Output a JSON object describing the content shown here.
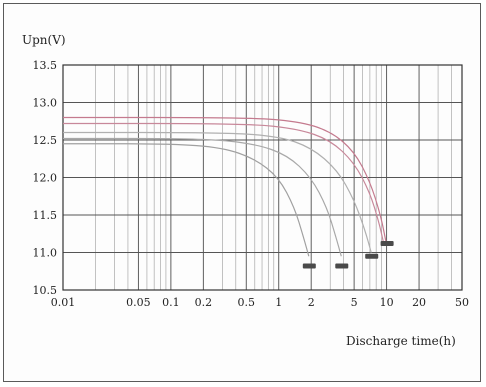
{
  "chart_data": {
    "type": "line",
    "ylabel": "Upn(V)",
    "xlabel": "Discharge time(h)",
    "x_scale": "log",
    "xlim": [
      0.01,
      50
    ],
    "ylim": [
      10.5,
      13.5
    ],
    "grid": true,
    "y_ticks": [
      "10.5",
      "11.0",
      "11.5",
      "12.0",
      "12.5",
      "13.0",
      "13.5"
    ],
    "x_ticks": [
      "0.01",
      "0.05",
      "0.1",
      "0.2",
      "0.5",
      "1",
      "2",
      "5",
      "10",
      "20",
      "50"
    ],
    "series": [
      {
        "color": "#a0a0a0",
        "points": [
          [
            0.01,
            12.45
          ],
          [
            0.1,
            12.45
          ],
          [
            0.3,
            12.4
          ],
          [
            0.6,
            12.25
          ],
          [
            1.0,
            12.0
          ],
          [
            1.4,
            11.6
          ],
          [
            1.7,
            11.2
          ],
          [
            1.9,
            10.95
          ]
        ]
      },
      {
        "color": "#a8a8a8",
        "points": [
          [
            0.01,
            12.52
          ],
          [
            0.2,
            12.52
          ],
          [
            0.6,
            12.45
          ],
          [
            1.2,
            12.3
          ],
          [
            2.0,
            12.0
          ],
          [
            2.8,
            11.6
          ],
          [
            3.4,
            11.2
          ],
          [
            3.8,
            10.95
          ]
        ]
      },
      {
        "color": "#b0b0b0",
        "points": [
          [
            0.01,
            12.6
          ],
          [
            0.3,
            12.6
          ],
          [
            1.0,
            12.55
          ],
          [
            2.0,
            12.4
          ],
          [
            3.5,
            12.1
          ],
          [
            5.0,
            11.7
          ],
          [
            6.3,
            11.3
          ],
          [
            7.2,
            11.0
          ]
        ]
      },
      {
        "color": "#c8889a",
        "points": [
          [
            0.01,
            12.72
          ],
          [
            0.5,
            12.72
          ],
          [
            1.5,
            12.65
          ],
          [
            3.0,
            12.5
          ],
          [
            5.0,
            12.2
          ],
          [
            7.0,
            11.8
          ],
          [
            8.5,
            11.4
          ],
          [
            9.3,
            11.15
          ]
        ]
      },
      {
        "color": "#c47a8e",
        "points": [
          [
            0.01,
            12.8
          ],
          [
            0.5,
            12.8
          ],
          [
            1.5,
            12.75
          ],
          [
            3.0,
            12.62
          ],
          [
            5.0,
            12.35
          ],
          [
            7.0,
            11.95
          ],
          [
            8.8,
            11.5
          ],
          [
            10.0,
            11.1
          ]
        ]
      }
    ],
    "end_markers": [
      {
        "x": 1.9,
        "y": 10.82
      },
      {
        "x": 3.8,
        "y": 10.82
      },
      {
        "x": 7.2,
        "y": 10.95
      },
      {
        "x": 10.0,
        "y": 11.12
      }
    ]
  }
}
